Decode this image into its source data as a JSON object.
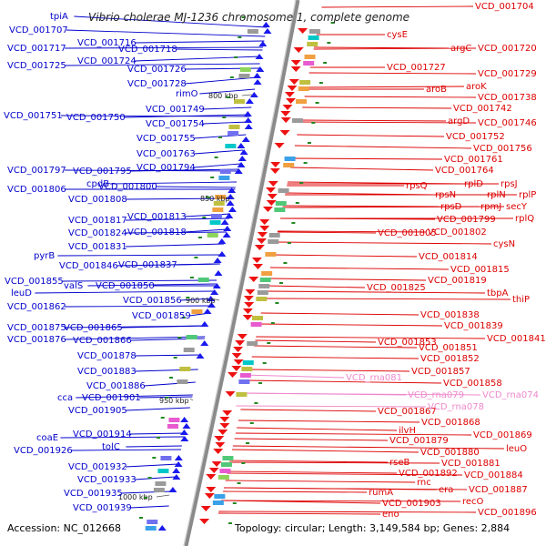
{
  "title": "Vibrio cholerae MJ-1236 chromosome 1, complete genome",
  "footer": {
    "accession": "Accession: NC_012668",
    "stats": "Topology: circular; Length: 3,149,584 bp; Genes: 2,884"
  },
  "colors": {
    "left_labels": "#0000cc",
    "right_labels": "#dd0000",
    "rna_labels": "#ee88cc",
    "backbone": "#888888",
    "ticks": "#228822"
  },
  "kbp_marks": [
    "800 kbp",
    "850 kbp",
    "900 kbp",
    "950 kbp",
    "1000 kbp"
  ],
  "left_labels": [
    "tpiA",
    "VCD_001707",
    "VCD_001716",
    "VCD_001717",
    "VCD_001718",
    "VCD_001724",
    "VCD_001725",
    "VCD_001726",
    "VCD_001728",
    "rimO",
    "VCD_001749",
    "VCD_001751",
    "VCD_001750",
    "VCD_001754",
    "VCD_001755",
    "VCD_001763",
    "VCD_001794",
    "VCD_001797",
    "VCD_001795",
    "cpdB",
    "VCD_001806",
    "VCD_001800",
    "VCD_001808",
    "VCD_001813",
    "VCD_001817",
    "VCD_001818",
    "VCD_001824",
    "VCD_001831",
    "pyrB",
    "VCD_001846",
    "VCD_001837",
    "VCD_001855",
    "valS",
    "VCD_001850",
    "leuD",
    "VCD_001856",
    "VCD_001862",
    "VCD_001859",
    "VCD_001875",
    "VCD_001865",
    "VCD_001876",
    "VCD_001866",
    "VCD_001878",
    "VCD_001883",
    "VCD_001886",
    "cca",
    "VCD_001901",
    "VCD_001905",
    "coaE",
    "VCD_001914",
    "VCD_001926",
    "tolC",
    "VCD_001932",
    "VCD_001933",
    "VCD_001935",
    "VCD_001939"
  ],
  "right_labels": [
    "VCD_001704",
    "cysE",
    "argC",
    "VCD_001720",
    "VCD_001727",
    "VCD_001729",
    "aroB",
    "aroK",
    "VCD_001738",
    "VCD_001742",
    "argD",
    "VCD_001746",
    "VCD_001752",
    "VCD_001756",
    "VCD_001761",
    "VCD_001764",
    "rplD",
    "rpsJ",
    "rpsQ",
    "rpsN",
    "rplN",
    "rplP",
    "rpsD",
    "rpmJ",
    "secY",
    "rplQ",
    "VCD_001799",
    "VCD_001805",
    "VCD_001802",
    "cysN",
    "VCD_001814",
    "VCD_001815",
    "VCD_001819",
    "VCD_001825",
    "tbpA",
    "thiP",
    "VCD_001838",
    "VCD_001839",
    "VCD_001841",
    "VCD_001853",
    "VCD_001851",
    "VCD_001852",
    "VCD_001857",
    "VCD_001858",
    "VCD_001867",
    "VCD_001868",
    "VCD_001869",
    "leuO",
    "ilvH",
    "VCD_001879",
    "VCD_001880",
    "VCD_001881",
    "rseB",
    "VCD_001892",
    "VCD_001884",
    "rnc",
    "era",
    "VCD_001887",
    "rumA",
    "VCD_001903",
    "recO",
    "eno",
    "VCD_001896"
  ],
  "rna_labels": [
    "VCD_rna081",
    "VCD_rna079",
    "VCD_rna074",
    "VCD_rna078"
  ]
}
